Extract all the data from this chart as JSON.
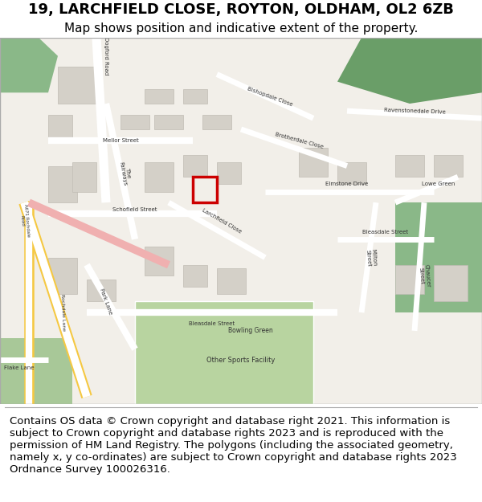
{
  "title_line1": "19, LARCHFIELD CLOSE, ROYTON, OLDHAM, OL2 6ZB",
  "title_line2": "Map shows position and indicative extent of the property.",
  "footer_text": "Contains OS data © Crown copyright and database right 2021. This information is subject to Crown copyright and database rights 2023 and is reproduced with the permission of HM Land Registry. The polygons (including the associated geometry, namely x, y co-ordinates) are subject to Crown copyright and database rights 2023 Ordnance Survey 100026316.",
  "background_color": "#ffffff",
  "title_fontsize": 13,
  "subtitle_fontsize": 11,
  "footer_fontsize": 9.5,
  "fig_width": 6.0,
  "fig_height": 6.25,
  "dpi": 100
}
